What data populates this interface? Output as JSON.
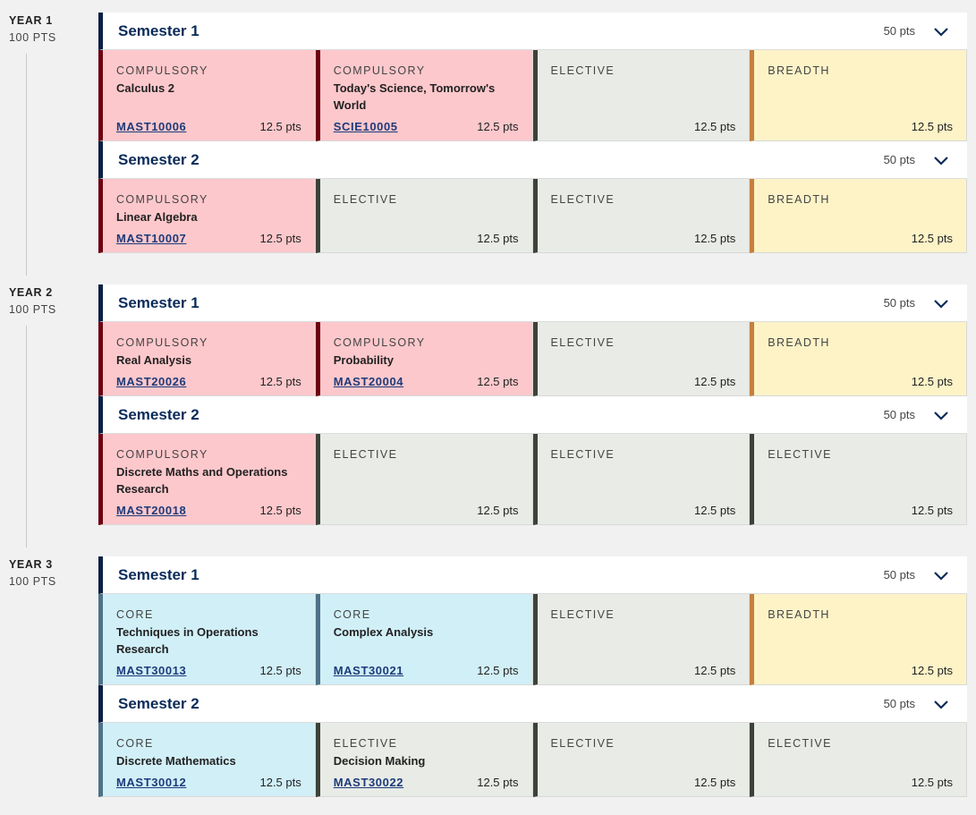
{
  "years": [
    {
      "title": "YEAR 1",
      "points": "100 PTS",
      "semesters": [
        {
          "title": "Semester 1",
          "points": "50 pts",
          "subjects": [
            {
              "type": "compulsory",
              "kind": "COMPULSORY",
              "name": "Calculus 2",
              "code": "MAST10006",
              "points": "12.5 pts"
            },
            {
              "type": "compulsory",
              "kind": "COMPULSORY",
              "name": "Today's Science, Tomorrow's World",
              "code": "SCIE10005",
              "points": "12.5 pts"
            },
            {
              "type": "elective",
              "kind": "ELECTIVE",
              "name": "",
              "code": "",
              "points": "12.5 pts"
            },
            {
              "type": "breadth",
              "kind": "BREADTH",
              "name": "",
              "code": "",
              "points": "12.5 pts"
            }
          ]
        },
        {
          "title": "Semester 2",
          "points": "50 pts",
          "subjects": [
            {
              "type": "compulsory",
              "kind": "COMPULSORY",
              "name": "Linear Algebra",
              "code": "MAST10007",
              "points": "12.5 pts"
            },
            {
              "type": "elective",
              "kind": "ELECTIVE",
              "name": "",
              "code": "",
              "points": "12.5 pts"
            },
            {
              "type": "elective",
              "kind": "ELECTIVE",
              "name": "",
              "code": "",
              "points": "12.5 pts"
            },
            {
              "type": "breadth",
              "kind": "BREADTH",
              "name": "",
              "code": "",
              "points": "12.5 pts"
            }
          ]
        }
      ]
    },
    {
      "title": "YEAR 2",
      "points": "100 PTS",
      "semesters": [
        {
          "title": "Semester 1",
          "points": "50 pts",
          "subjects": [
            {
              "type": "compulsory",
              "kind": "COMPULSORY",
              "name": "Real Analysis",
              "code": "MAST20026",
              "points": "12.5 pts"
            },
            {
              "type": "compulsory",
              "kind": "COMPULSORY",
              "name": "Probability",
              "code": "MAST20004",
              "points": "12.5 pts"
            },
            {
              "type": "elective",
              "kind": "ELECTIVE",
              "name": "",
              "code": "",
              "points": "12.5 pts"
            },
            {
              "type": "breadth",
              "kind": "BREADTH",
              "name": "",
              "code": "",
              "points": "12.5 pts"
            }
          ]
        },
        {
          "title": "Semester 2",
          "points": "50 pts",
          "subjects": [
            {
              "type": "compulsory",
              "kind": "COMPULSORY",
              "name": "Discrete Maths and Operations Research",
              "code": "MAST20018",
              "points": "12.5 pts"
            },
            {
              "type": "elective",
              "kind": "ELECTIVE",
              "name": "",
              "code": "",
              "points": "12.5 pts"
            },
            {
              "type": "elective",
              "kind": "ELECTIVE",
              "name": "",
              "code": "",
              "points": "12.5 pts"
            },
            {
              "type": "elective",
              "kind": "ELECTIVE",
              "name": "",
              "code": "",
              "points": "12.5 pts"
            }
          ]
        }
      ]
    },
    {
      "title": "YEAR 3",
      "points": "100 PTS",
      "semesters": [
        {
          "title": "Semester 1",
          "points": "50 pts",
          "subjects": [
            {
              "type": "core",
              "kind": "CORE",
              "name": "Techniques in Operations Research",
              "code": "MAST30013",
              "points": "12.5 pts"
            },
            {
              "type": "core",
              "kind": "CORE",
              "name": "Complex Analysis",
              "code": "MAST30021",
              "points": "12.5 pts"
            },
            {
              "type": "elective",
              "kind": "ELECTIVE",
              "name": "",
              "code": "",
              "points": "12.5 pts"
            },
            {
              "type": "breadth",
              "kind": "BREADTH",
              "name": "",
              "code": "",
              "points": "12.5 pts"
            }
          ]
        },
        {
          "title": "Semester 2",
          "points": "50 pts",
          "subjects": [
            {
              "type": "core",
              "kind": "CORE",
              "name": "Discrete Mathematics",
              "code": "MAST30012",
              "points": "12.5 pts"
            },
            {
              "type": "elective",
              "kind": "ELECTIVE",
              "name": "Decision Making",
              "code": "MAST30022",
              "points": "12.5 pts"
            },
            {
              "type": "elective",
              "kind": "ELECTIVE",
              "name": "",
              "code": "",
              "points": "12.5 pts"
            },
            {
              "type": "elective",
              "kind": "ELECTIVE",
              "name": "",
              "code": "",
              "points": "12.5 pts"
            }
          ]
        }
      ]
    }
  ]
}
